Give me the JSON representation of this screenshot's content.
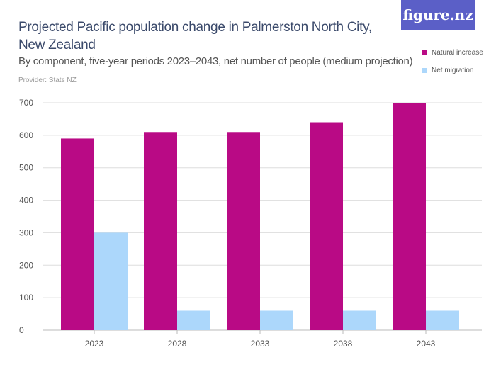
{
  "header": {
    "title": "Projected Pacific population change in Palmerston North City, New Zealand",
    "subtitle": "By component, five-year periods 2023–2043, net number of people (medium projection)",
    "provider": "Provider: Stats NZ",
    "logo": "figure.nz"
  },
  "chart_data": {
    "type": "bar",
    "title": "Projected Pacific population change in Palmerston North City, New Zealand",
    "categories": [
      "2023",
      "2028",
      "2033",
      "2038",
      "2043"
    ],
    "series": [
      {
        "name": "Natural increase",
        "color": "#b90a85",
        "values": [
          590,
          610,
          610,
          640,
          700
        ]
      },
      {
        "name": "Net migration",
        "color": "#acd7fb",
        "values": [
          300,
          60,
          60,
          60,
          60
        ]
      }
    ],
    "yticks": [
      0,
      100,
      200,
      300,
      400,
      500,
      600,
      700
    ],
    "ylim": [
      0,
      700
    ],
    "grid": true,
    "legend": "top-right"
  }
}
